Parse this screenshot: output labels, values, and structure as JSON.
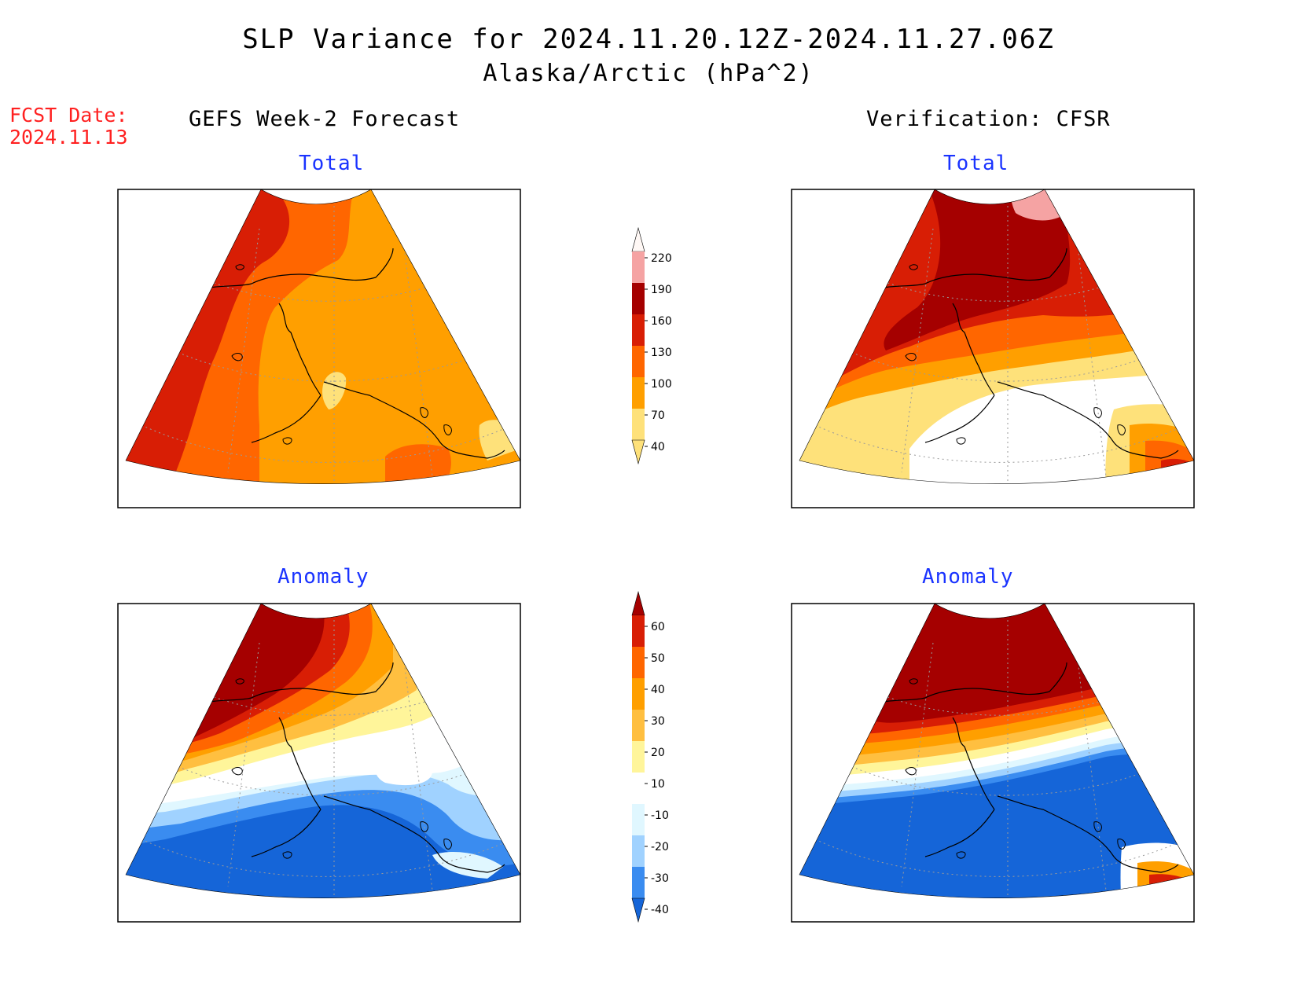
{
  "title": {
    "line1": "SLP Variance for 2024.11.20.12Z-2024.11.27.06Z",
    "line2": "Alaska/Arctic (hPa^2)"
  },
  "forecast_date": {
    "label": "FCST Date:",
    "value": "2024.11.13"
  },
  "columns": {
    "left": "GEFS Week-2 Forecast",
    "right": "Verification: CFSR"
  },
  "panel_titles": {
    "total": "Total",
    "anomaly": "Anomaly"
  },
  "colorbars": {
    "total": {
      "levels": [
        "40",
        "70",
        "100",
        "130",
        "160",
        "190",
        "220"
      ],
      "colors": [
        "#fff8f5",
        "#f5a3a3",
        "#a50000",
        "#d81e05",
        "#ff6600",
        "#ff9f00",
        "#fee17a"
      ]
    },
    "anomaly": {
      "levels": [
        "60",
        "50",
        "40",
        "30",
        "20",
        "10",
        "-10",
        "-20",
        "-30",
        "-40"
      ],
      "colors": [
        "#a50000",
        "#d81e05",
        "#ff6600",
        "#ff9f00",
        "#ffbf40",
        "#fff59a",
        "#ffffff",
        "#e0f7ff",
        "#a0d2ff",
        "#3a8cf0",
        "#1565d8"
      ]
    }
  }
}
